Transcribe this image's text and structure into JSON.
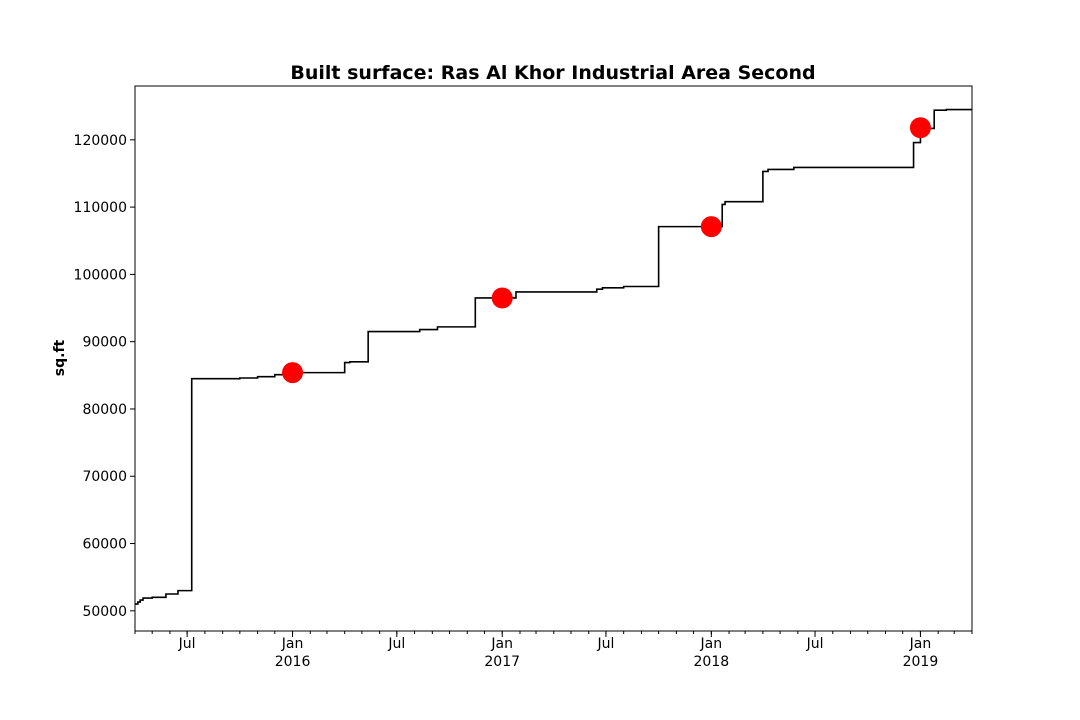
{
  "chart_data": {
    "type": "line",
    "title": "Built surface: Ras Al Khor Industrial Area Second",
    "xlabel": "",
    "ylabel": "sq.ft",
    "xlim": [
      "2015-04-01",
      "2019-04-01"
    ],
    "ylim": [
      47000,
      128000
    ],
    "grid": false,
    "y_ticks": [
      50000,
      60000,
      70000,
      80000,
      90000,
      100000,
      110000,
      120000
    ],
    "y_tick_labels": [
      "50000",
      "60000",
      "70000",
      "80000",
      "90000",
      "100000",
      "110000",
      "120000"
    ],
    "x_major_ticks": [
      {
        "date": "2015-07-01",
        "label": "Jul",
        "year": ""
      },
      {
        "date": "2016-01-01",
        "label": "Jan",
        "year": "2016"
      },
      {
        "date": "2016-07-01",
        "label": "Jul",
        "year": ""
      },
      {
        "date": "2017-01-01",
        "label": "Jan",
        "year": "2017"
      },
      {
        "date": "2017-07-01",
        "label": "Jul",
        "year": ""
      },
      {
        "date": "2018-01-01",
        "label": "Jan",
        "year": "2018"
      },
      {
        "date": "2018-07-01",
        "label": "Jul",
        "year": ""
      },
      {
        "date": "2019-01-01",
        "label": "Jan",
        "year": "2019"
      }
    ],
    "series": [
      {
        "color": "#000000",
        "step": true,
        "points": [
          [
            "2015-04-01",
            51000
          ],
          [
            "2015-04-06",
            51300
          ],
          [
            "2015-04-10",
            51600
          ],
          [
            "2015-04-15",
            51900
          ],
          [
            "2015-05-01",
            52000
          ],
          [
            "2015-05-25",
            52500
          ],
          [
            "2015-06-15",
            53000
          ],
          [
            "2015-07-09",
            84500
          ],
          [
            "2015-10-01",
            84600
          ],
          [
            "2015-11-01",
            84800
          ],
          [
            "2015-12-01",
            85100
          ],
          [
            "2015-12-20",
            85400
          ],
          [
            "2016-04-01",
            86900
          ],
          [
            "2016-04-10",
            87000
          ],
          [
            "2016-05-12",
            91500
          ],
          [
            "2016-08-10",
            91800
          ],
          [
            "2016-09-10",
            92200
          ],
          [
            "2016-11-15",
            96500
          ],
          [
            "2017-01-25",
            97400
          ],
          [
            "2017-06-15",
            97800
          ],
          [
            "2017-06-25",
            98000
          ],
          [
            "2017-08-01",
            98200
          ],
          [
            "2017-10-01",
            107100
          ],
          [
            "2018-01-20",
            110400
          ],
          [
            "2018-01-25",
            110800
          ],
          [
            "2018-04-01",
            115300
          ],
          [
            "2018-04-10",
            115600
          ],
          [
            "2018-05-25",
            115900
          ],
          [
            "2018-12-20",
            119600
          ],
          [
            "2019-01-01",
            121700
          ],
          [
            "2019-01-25",
            124400
          ],
          [
            "2019-02-15",
            124500
          ],
          [
            "2019-04-01",
            124500
          ]
        ]
      },
      {
        "color": "#ff0000",
        "marker": "circle",
        "points": [
          [
            "2016-01-01",
            85400
          ],
          [
            "2017-01-01",
            96500
          ],
          [
            "2018-01-01",
            107100
          ],
          [
            "2019-01-01",
            121800
          ]
        ]
      }
    ]
  }
}
